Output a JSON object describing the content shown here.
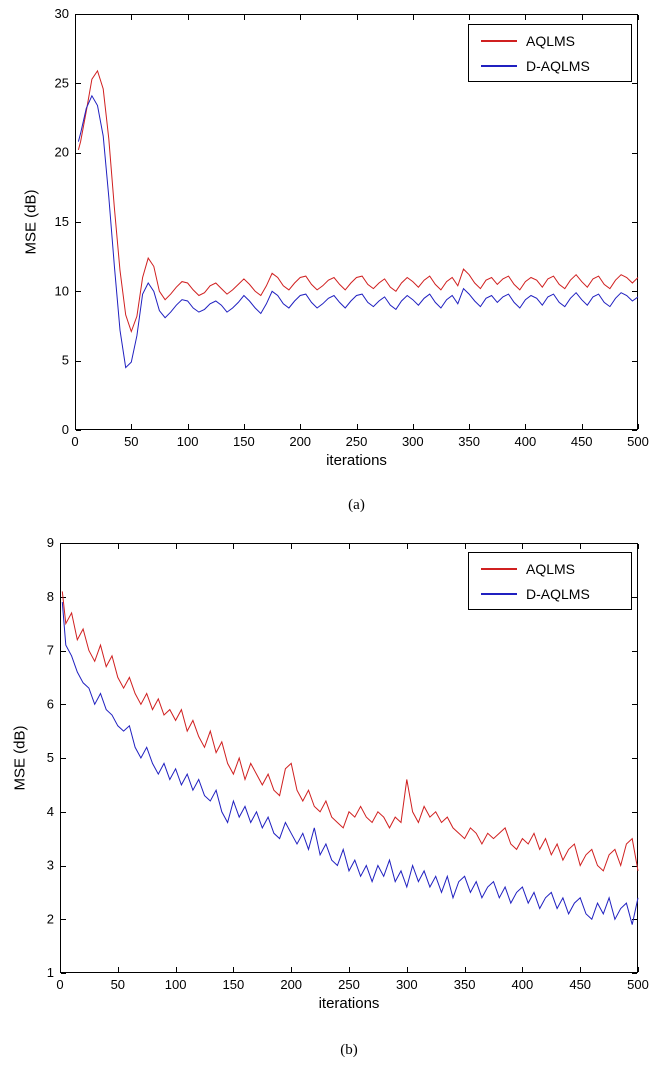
{
  "page": {
    "background": "#ffffff"
  },
  "chart_data": [
    {
      "type": "line",
      "title": "",
      "xlabel": "iterations",
      "ylabel": "MSE (dB)",
      "caption": "(a)",
      "xlim": [
        0,
        500
      ],
      "ylim": [
        0,
        30
      ],
      "xticks": [
        0,
        50,
        100,
        150,
        200,
        250,
        300,
        350,
        400,
        450,
        500
      ],
      "yticks": [
        0,
        5,
        10,
        15,
        20,
        25,
        30
      ],
      "grid": false,
      "legend_position": "top-right",
      "x": [
        3,
        5,
        10,
        15,
        20,
        25,
        30,
        35,
        40,
        45,
        50,
        55,
        60,
        65,
        70,
        75,
        80,
        85,
        90,
        95,
        100,
        105,
        110,
        115,
        120,
        125,
        130,
        135,
        140,
        145,
        150,
        155,
        160,
        165,
        170,
        175,
        180,
        185,
        190,
        195,
        200,
        205,
        210,
        215,
        220,
        225,
        230,
        235,
        240,
        245,
        250,
        255,
        260,
        265,
        270,
        275,
        280,
        285,
        290,
        295,
        300,
        305,
        310,
        315,
        320,
        325,
        330,
        335,
        340,
        345,
        350,
        355,
        360,
        365,
        370,
        375,
        380,
        385,
        390,
        395,
        400,
        405,
        410,
        415,
        420,
        425,
        430,
        435,
        440,
        445,
        450,
        455,
        460,
        465,
        470,
        475,
        480,
        485,
        490,
        495,
        500
      ],
      "series": [
        {
          "name": "AQLMS",
          "color": "#d02020",
          "values": [
            20.2,
            20.8,
            23.0,
            25.3,
            25.9,
            24.6,
            21.0,
            16.0,
            11.5,
            8.3,
            7.1,
            8.2,
            11.0,
            12.4,
            11.8,
            10.0,
            9.4,
            9.8,
            10.3,
            10.7,
            10.6,
            10.1,
            9.7,
            9.9,
            10.4,
            10.6,
            10.2,
            9.8,
            10.1,
            10.5,
            10.9,
            10.5,
            10.0,
            9.7,
            10.4,
            11.3,
            11.0,
            10.4,
            10.1,
            10.6,
            11.0,
            11.1,
            10.5,
            10.1,
            10.4,
            10.8,
            11.0,
            10.5,
            10.1,
            10.6,
            11.0,
            11.1,
            10.5,
            10.2,
            10.6,
            10.9,
            10.3,
            10.0,
            10.6,
            11.0,
            10.7,
            10.3,
            10.8,
            11.1,
            10.5,
            10.1,
            10.7,
            11.0,
            10.4,
            11.6,
            11.2,
            10.6,
            10.2,
            10.8,
            11.0,
            10.5,
            10.9,
            11.1,
            10.5,
            10.1,
            10.7,
            11.0,
            10.8,
            10.3,
            10.9,
            11.1,
            10.5,
            10.2,
            10.8,
            11.2,
            10.7,
            10.3,
            10.9,
            11.1,
            10.5,
            10.2,
            10.8,
            11.2,
            11.0,
            10.6,
            11.0
          ]
        },
        {
          "name": "D-AQLMS",
          "color": "#2020c0",
          "values": [
            20.8,
            21.4,
            23.2,
            24.1,
            23.4,
            21.2,
            16.8,
            11.8,
            7.2,
            4.5,
            4.9,
            6.8,
            9.8,
            10.6,
            10.0,
            8.6,
            8.1,
            8.5,
            9.0,
            9.4,
            9.3,
            8.8,
            8.5,
            8.7,
            9.1,
            9.3,
            9.0,
            8.5,
            8.8,
            9.2,
            9.7,
            9.3,
            8.8,
            8.4,
            9.1,
            10.0,
            9.7,
            9.1,
            8.8,
            9.3,
            9.7,
            9.8,
            9.2,
            8.8,
            9.1,
            9.5,
            9.7,
            9.2,
            8.8,
            9.3,
            9.7,
            9.8,
            9.2,
            8.9,
            9.3,
            9.6,
            9.0,
            8.7,
            9.3,
            9.7,
            9.4,
            9.0,
            9.5,
            9.8,
            9.2,
            8.8,
            9.4,
            9.7,
            9.1,
            10.2,
            9.8,
            9.3,
            8.9,
            9.5,
            9.7,
            9.2,
            9.6,
            9.8,
            9.2,
            8.8,
            9.4,
            9.7,
            9.5,
            9.0,
            9.6,
            9.8,
            9.2,
            8.9,
            9.5,
            9.9,
            9.4,
            9.0,
            9.6,
            9.8,
            9.2,
            8.9,
            9.5,
            9.9,
            9.7,
            9.3,
            9.6
          ]
        }
      ]
    },
    {
      "type": "line",
      "title": "",
      "xlabel": "iterations",
      "ylabel": "MSE (dB)",
      "caption": "(b)",
      "xlim": [
        0,
        500
      ],
      "ylim": [
        1,
        9
      ],
      "xticks": [
        0,
        50,
        100,
        150,
        200,
        250,
        300,
        350,
        400,
        450,
        500
      ],
      "yticks": [
        1,
        2,
        3,
        4,
        5,
        6,
        7,
        8,
        9
      ],
      "grid": false,
      "legend_position": "top-right",
      "x": [
        2,
        5,
        10,
        15,
        20,
        25,
        30,
        35,
        40,
        45,
        50,
        55,
        60,
        65,
        70,
        75,
        80,
        85,
        90,
        95,
        100,
        105,
        110,
        115,
        120,
        125,
        130,
        135,
        140,
        145,
        150,
        155,
        160,
        165,
        170,
        175,
        180,
        185,
        190,
        195,
        200,
        205,
        210,
        215,
        220,
        225,
        230,
        235,
        240,
        245,
        250,
        255,
        260,
        265,
        270,
        275,
        280,
        285,
        290,
        295,
        300,
        305,
        310,
        315,
        320,
        325,
        330,
        335,
        340,
        345,
        350,
        355,
        360,
        365,
        370,
        375,
        380,
        385,
        390,
        395,
        400,
        405,
        410,
        415,
        420,
        425,
        430,
        435,
        440,
        445,
        450,
        455,
        460,
        465,
        470,
        475,
        480,
        485,
        490,
        495,
        500
      ],
      "series": [
        {
          "name": "AQLMS",
          "color": "#d02020",
          "values": [
            8.1,
            7.5,
            7.7,
            7.2,
            7.4,
            7.0,
            6.8,
            7.1,
            6.7,
            6.9,
            6.5,
            6.3,
            6.5,
            6.2,
            6.0,
            6.2,
            5.9,
            6.1,
            5.8,
            5.9,
            5.7,
            5.9,
            5.5,
            5.7,
            5.4,
            5.2,
            5.5,
            5.1,
            5.3,
            4.9,
            4.7,
            5.0,
            4.6,
            4.9,
            4.7,
            4.5,
            4.7,
            4.4,
            4.3,
            4.8,
            4.9,
            4.4,
            4.2,
            4.4,
            4.1,
            4.0,
            4.2,
            3.9,
            3.8,
            3.7,
            4.0,
            3.9,
            4.1,
            3.9,
            3.8,
            4.0,
            3.9,
            3.7,
            3.9,
            3.8,
            4.6,
            4.0,
            3.8,
            4.1,
            3.9,
            4.0,
            3.8,
            3.9,
            3.7,
            3.6,
            3.5,
            3.7,
            3.6,
            3.4,
            3.6,
            3.5,
            3.6,
            3.7,
            3.4,
            3.3,
            3.5,
            3.4,
            3.6,
            3.3,
            3.5,
            3.2,
            3.4,
            3.1,
            3.3,
            3.4,
            3.0,
            3.2,
            3.3,
            3.0,
            2.9,
            3.2,
            3.3,
            3.0,
            3.4,
            3.5,
            2.9
          ]
        },
        {
          "name": "D-AQLMS",
          "color": "#2020c0",
          "values": [
            7.9,
            7.1,
            6.9,
            6.6,
            6.4,
            6.3,
            6.0,
            6.2,
            5.9,
            5.8,
            5.6,
            5.5,
            5.6,
            5.2,
            5.0,
            5.2,
            4.9,
            4.7,
            4.9,
            4.6,
            4.8,
            4.5,
            4.7,
            4.4,
            4.6,
            4.3,
            4.2,
            4.4,
            4.0,
            3.8,
            4.2,
            3.9,
            4.1,
            3.8,
            4.0,
            3.7,
            3.9,
            3.6,
            3.5,
            3.8,
            3.6,
            3.4,
            3.6,
            3.3,
            3.7,
            3.2,
            3.4,
            3.1,
            3.0,
            3.3,
            2.9,
            3.1,
            2.8,
            3.0,
            2.7,
            3.0,
            2.8,
            3.1,
            2.7,
            2.9,
            2.6,
            3.0,
            2.7,
            2.9,
            2.6,
            2.8,
            2.5,
            2.8,
            2.4,
            2.7,
            2.8,
            2.5,
            2.7,
            2.4,
            2.6,
            2.7,
            2.4,
            2.6,
            2.3,
            2.5,
            2.6,
            2.3,
            2.5,
            2.2,
            2.4,
            2.5,
            2.2,
            2.4,
            2.1,
            2.3,
            2.4,
            2.1,
            2.0,
            2.3,
            2.1,
            2.4,
            2.0,
            2.2,
            2.3,
            1.9,
            2.4
          ]
        }
      ]
    }
  ]
}
